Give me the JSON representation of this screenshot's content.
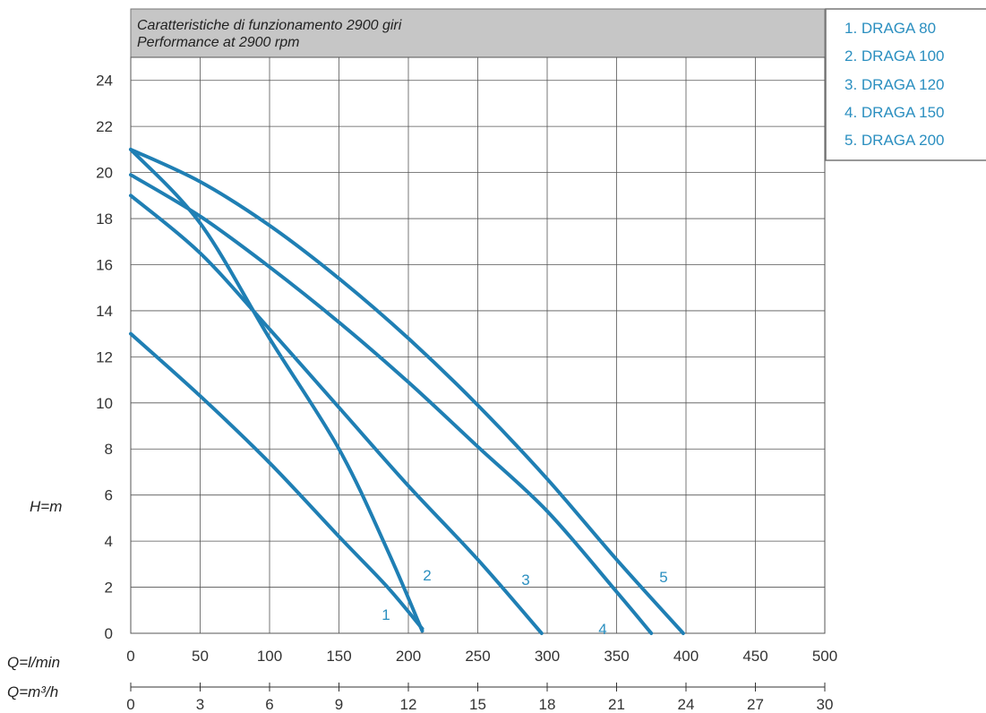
{
  "chart_data": {
    "type": "line",
    "title": "Caratteristiche di funzionamento 2900 giri",
    "subtitle": "Performance at 2900 rpm",
    "ylabel": "H=m",
    "xlabel": "Q=l/min",
    "xlabel2": "Q=m³/h",
    "xlim": [
      0,
      500
    ],
    "ylim": [
      0,
      25
    ],
    "x_ticks": [
      "0",
      "50",
      "100",
      "150",
      "200",
      "250",
      "300",
      "350",
      "400",
      "450",
      "500"
    ],
    "x2_ticks": [
      "0",
      "3",
      "6",
      "9",
      "12",
      "15",
      "18",
      "21",
      "24",
      "27",
      "30"
    ],
    "y_ticks": [
      "0",
      "2",
      "4",
      "6",
      "8",
      "10",
      "12",
      "14",
      "16",
      "18",
      "20",
      "22",
      "24"
    ],
    "grid": true,
    "legend_position": "top-right",
    "legend": [
      "1. DRAGA 80",
      "2. DRAGA 100",
      "3. DRAGA 120",
      "4. DRAGA 150",
      "5. DRAGA 200"
    ],
    "series": [
      {
        "name": "1",
        "x": [
          0,
          50,
          100,
          150,
          185,
          210
        ],
        "y": [
          13,
          10.3,
          7.4,
          4.2,
          2.0,
          0.2
        ]
      },
      {
        "name": "2",
        "x": [
          0,
          50,
          100,
          150,
          185,
          210
        ],
        "y": [
          21,
          17.8,
          12.8,
          8.0,
          3.6,
          0.1
        ]
      },
      {
        "name": "3",
        "x": [
          0,
          50,
          100,
          150,
          200,
          250,
          296
        ],
        "y": [
          19,
          16.5,
          13.2,
          9.8,
          6.4,
          3.2,
          0
        ]
      },
      {
        "name": "4",
        "x": [
          0,
          50,
          100,
          150,
          200,
          250,
          300,
          350,
          375
        ],
        "y": [
          19.9,
          18.1,
          15.9,
          13.5,
          10.9,
          8.1,
          5.3,
          1.8,
          0
        ]
      },
      {
        "name": "5",
        "x": [
          0,
          50,
          100,
          150,
          200,
          250,
          300,
          350,
          398
        ],
        "y": [
          21,
          19.6,
          17.7,
          15.4,
          12.8,
          9.9,
          6.7,
          3.2,
          0
        ]
      }
    ]
  },
  "colors": {
    "curve": "#1f7fb4",
    "label": "#2b8fc0",
    "grid": "#555555",
    "title_band": "#c6c6c6"
  }
}
